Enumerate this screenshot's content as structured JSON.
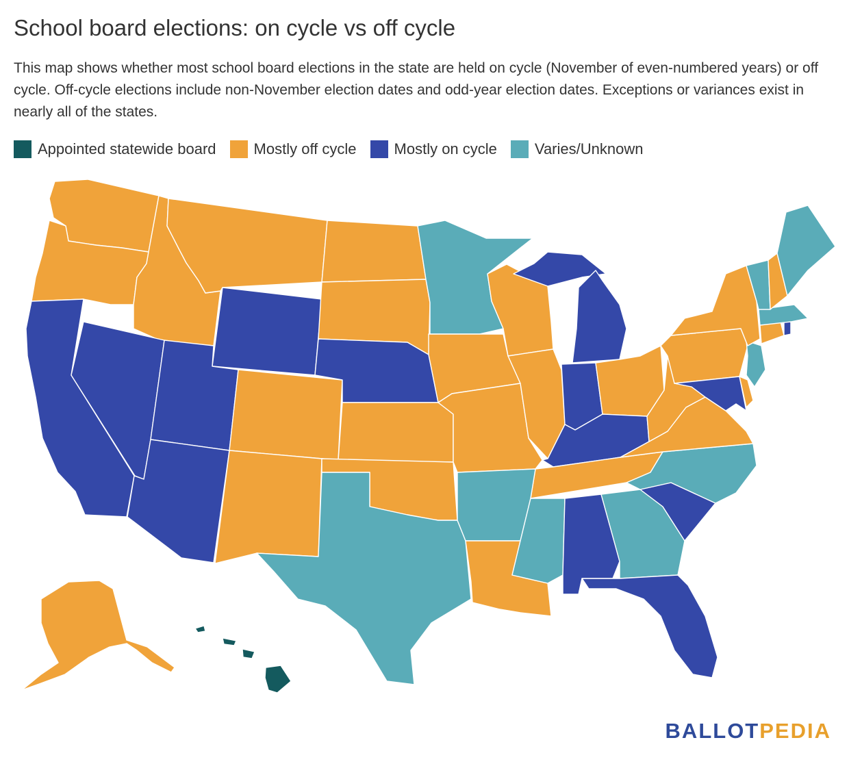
{
  "title": "School board elections: on cycle vs off cycle",
  "description": "This map shows whether most school board elections in the state are held on cycle (November of even-numbered years) or off cycle. Off-cycle elections include non-November election dates and odd-year election dates. Exceptions or variances exist in nearly all of the states.",
  "legend": [
    {
      "key": "appointed",
      "label": "Appointed statewide board",
      "color": "#145a5e"
    },
    {
      "key": "off",
      "label": "Mostly off cycle",
      "color": "#f0a33a"
    },
    {
      "key": "on",
      "label": "Mostly on cycle",
      "color": "#3448a8"
    },
    {
      "key": "varies",
      "label": "Varies/Unknown",
      "color": "#5aacb8"
    }
  ],
  "states": {
    "WA": "off",
    "OR": "off",
    "ID": "off",
    "MT": "off",
    "ND": "off",
    "SD": "off",
    "CA": "on",
    "NV": "on",
    "UT": "on",
    "WY": "on",
    "NE": "on",
    "AZ": "on",
    "CO": "off",
    "NM": "off",
    "KS": "off",
    "OK": "off",
    "MN": "varies",
    "IA": "off",
    "MO": "off",
    "WI": "off",
    "IL": "off",
    "MI": "on",
    "IN": "on",
    "OH": "off",
    "KY": "on",
    "TN": "off",
    "TX": "varies",
    "AR": "varies",
    "LA": "off",
    "MS": "varies",
    "AL": "on",
    "GA": "varies",
    "FL": "on",
    "SC": "on",
    "NC": "varies",
    "VA": "off",
    "WV": "off",
    "PA": "off",
    "NY": "off",
    "VT": "varies",
    "NH": "off",
    "ME": "varies",
    "MA": "varies",
    "RI": "on",
    "CT": "off",
    "NJ": "varies",
    "DE": "off",
    "MD": "on",
    "AK": "off",
    "HI": "appointed"
  },
  "logo": {
    "part1": "BALLOT",
    "part2": "PEDIA"
  }
}
